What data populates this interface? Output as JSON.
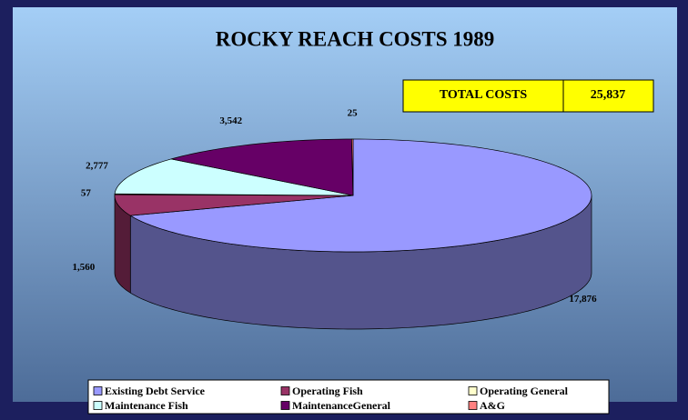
{
  "chart_data": {
    "type": "pie",
    "title": "ROCKY REACH COSTS 1989",
    "total_label": "TOTAL COSTS",
    "total": "25,837",
    "categories": [
      "Existing Debt Service",
      "Operating Fish",
      "Operating General",
      "Maintenance Fish",
      "MaintenanceGeneral",
      "A&G"
    ],
    "values": [
      17876,
      1560,
      57,
      2777,
      3542,
      25
    ],
    "value_labels": [
      "17,876",
      "1,560",
      "57",
      "2,777",
      "3,542",
      "25"
    ],
    "colors": [
      "#9999ff",
      "#993366",
      "#ffffcc",
      "#ccffff",
      "#660066",
      "#ff8080"
    ],
    "legend": "bottom"
  }
}
